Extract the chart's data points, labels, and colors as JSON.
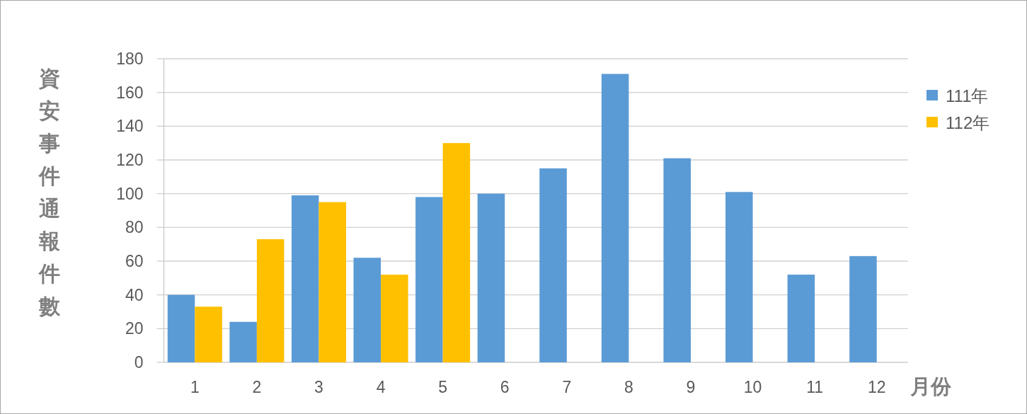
{
  "chart_data": {
    "type": "bar",
    "xlabel": "月份",
    "ylabel": "資安事件通報件數",
    "categories": [
      "1",
      "2",
      "3",
      "4",
      "5",
      "6",
      "7",
      "8",
      "9",
      "10",
      "11",
      "12"
    ],
    "series": [
      {
        "name": "111年",
        "color": "#5b9bd5",
        "values": [
          40,
          24,
          99,
          62,
          98,
          100,
          115,
          171,
          121,
          101,
          52,
          63
        ]
      },
      {
        "name": "112年",
        "color": "#ffc000",
        "values": [
          33,
          73,
          95,
          52,
          130,
          null,
          null,
          null,
          null,
          null,
          null,
          null
        ]
      }
    ],
    "ylim": [
      0,
      180
    ],
    "yticks": [
      0,
      20,
      40,
      60,
      80,
      100,
      120,
      140,
      160,
      180
    ],
    "grid": "y",
    "legend": "right"
  }
}
